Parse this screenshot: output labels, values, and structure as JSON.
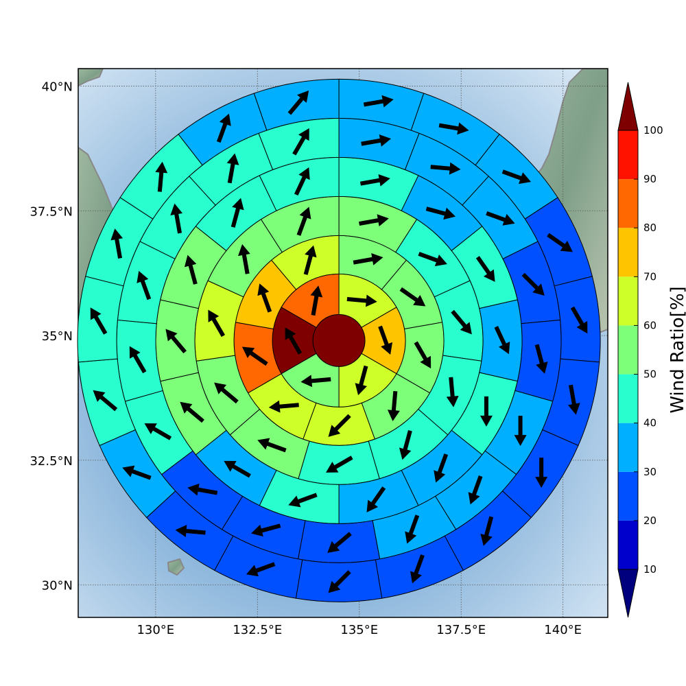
{
  "map": {
    "lon_range": [
      128.1,
      141.1
    ],
    "lat_range": [
      29.35,
      40.35
    ],
    "lon_ticks": [
      {
        "value": 130,
        "label": "130°E"
      },
      {
        "value": 132.5,
        "label": "132.5°E"
      },
      {
        "value": 135,
        "label": "135°E"
      },
      {
        "value": 137.5,
        "label": "137.5°E"
      },
      {
        "value": 140,
        "label": "140°E"
      }
    ],
    "lat_ticks": [
      {
        "value": 40,
        "label": "40°N"
      },
      {
        "value": 37.5,
        "label": "37.5°N"
      },
      {
        "value": 35,
        "label": "35°N"
      },
      {
        "value": 32.5,
        "label": "32.5°N"
      },
      {
        "value": 30,
        "label": "30°N"
      }
    ],
    "grid": true,
    "background": "shaded relief with gray coastlines"
  },
  "colorbar": {
    "title": "Wind Ratio[%]",
    "levels": [
      10,
      20,
      30,
      40,
      50,
      60,
      70,
      80,
      90,
      100
    ],
    "colors": [
      "#0000cd",
      "#0050ff",
      "#00afff",
      "#29ffce",
      "#7dff7a",
      "#ceff29",
      "#ffc400",
      "#ff6800",
      "#ff1300"
    ],
    "under_color": "#00007f",
    "over_color": "#7f0000",
    "extend": "both"
  },
  "chart_data": {
    "type": "polar sector grid with wind vectors",
    "center": {
      "lon": 134.5,
      "lat": 34.9
    },
    "rings": [
      {
        "ring": 1,
        "sectors": [
          {
            "ratio": 100,
            "dir": 0,
            "arrow": false
          }
        ]
      },
      {
        "ring": 2,
        "sectors": [
          {
            "ratio": 62,
            "dir": 95
          },
          {
            "ratio": 75,
            "dir": 160
          },
          {
            "ratio": 62,
            "dir": 195
          },
          {
            "ratio": 55,
            "dir": 265
          },
          {
            "ratio": 100,
            "dir": 330
          },
          {
            "ratio": 85,
            "dir": 10
          }
        ]
      },
      {
        "ring": 3,
        "sectors": [
          {
            "ratio": 55,
            "dir": 80
          },
          {
            "ratio": 55,
            "dir": 125
          },
          {
            "ratio": 55,
            "dir": 150
          },
          {
            "ratio": 55,
            "dir": 185
          },
          {
            "ratio": 65,
            "dir": 225
          },
          {
            "ratio": 65,
            "dir": 265
          },
          {
            "ratio": 85,
            "dir": 305
          },
          {
            "ratio": 75,
            "dir": 340
          },
          {
            "ratio": 65,
            "dir": 15
          }
        ]
      },
      {
        "ring": 4,
        "sectors": [
          {
            "ratio": 55,
            "dir": 80
          },
          {
            "ratio": 45,
            "dir": 110
          },
          {
            "ratio": 45,
            "dir": 140
          },
          {
            "ratio": 45,
            "dir": 175
          },
          {
            "ratio": 45,
            "dir": 195
          },
          {
            "ratio": 45,
            "dir": 240
          },
          {
            "ratio": 55,
            "dir": 290
          },
          {
            "ratio": 55,
            "dir": 310
          },
          {
            "ratio": 65,
            "dir": 330
          },
          {
            "ratio": 55,
            "dir": 350
          },
          {
            "ratio": 55,
            "dir": 20
          }
        ]
      },
      {
        "ring": 5,
        "sectors": [
          {
            "ratio": 45,
            "dir": 80
          },
          {
            "ratio": 35,
            "dir": 105
          },
          {
            "ratio": 45,
            "dir": 145
          },
          {
            "ratio": 35,
            "dir": 155
          },
          {
            "ratio": 45,
            "dir": 180
          },
          {
            "ratio": 35,
            "dir": 200
          },
          {
            "ratio": 35,
            "dir": 215
          },
          {
            "ratio": 45,
            "dir": 250
          },
          {
            "ratio": 35,
            "dir": 300
          },
          {
            "ratio": 55,
            "dir": 310
          },
          {
            "ratio": 55,
            "dir": 320
          },
          {
            "ratio": 55,
            "dir": 345
          },
          {
            "ratio": 45,
            "dir": 15
          },
          {
            "ratio": 45,
            "dir": 25
          }
        ]
      },
      {
        "ring": 6,
        "sectors": [
          {
            "ratio": 35,
            "dir": 80
          },
          {
            "ratio": 35,
            "dir": 95
          },
          {
            "ratio": 35,
            "dir": 110
          },
          {
            "ratio": 25,
            "dir": 135
          },
          {
            "ratio": 25,
            "dir": 165
          },
          {
            "ratio": 35,
            "dir": 180
          },
          {
            "ratio": 35,
            "dir": 200
          },
          {
            "ratio": 35,
            "dir": 200
          },
          {
            "ratio": 25,
            "dir": 230
          },
          {
            "ratio": 25,
            "dir": 255
          },
          {
            "ratio": 25,
            "dir": 280
          },
          {
            "ratio": 45,
            "dir": 300
          },
          {
            "ratio": 45,
            "dir": 330
          },
          {
            "ratio": 45,
            "dir": 340
          },
          {
            "ratio": 45,
            "dir": 350
          },
          {
            "ratio": 45,
            "dir": 10
          },
          {
            "ratio": 45,
            "dir": 30
          }
        ]
      },
      {
        "ring": 7,
        "sectors": [
          {
            "ratio": 35,
            "dir": 80
          },
          {
            "ratio": 35,
            "dir": 100
          },
          {
            "ratio": 35,
            "dir": 110
          },
          {
            "ratio": 25,
            "dir": 125
          },
          {
            "ratio": 25,
            "dir": 150
          },
          {
            "ratio": 25,
            "dir": 170
          },
          {
            "ratio": 25,
            "dir": 180
          },
          {
            "ratio": 25,
            "dir": 195
          },
          {
            "ratio": 25,
            "dir": 200
          },
          {
            "ratio": 25,
            "dir": 225
          },
          {
            "ratio": 25,
            "dir": 250
          },
          {
            "ratio": 25,
            "dir": 275
          },
          {
            "ratio": 35,
            "dir": 290
          },
          {
            "ratio": 45,
            "dir": 310
          },
          {
            "ratio": 45,
            "dir": 330
          },
          {
            "ratio": 45,
            "dir": 350
          },
          {
            "ratio": 45,
            "dir": 5
          },
          {
            "ratio": 35,
            "dir": 20
          },
          {
            "ratio": 35,
            "dir": 40
          }
        ]
      }
    ]
  }
}
